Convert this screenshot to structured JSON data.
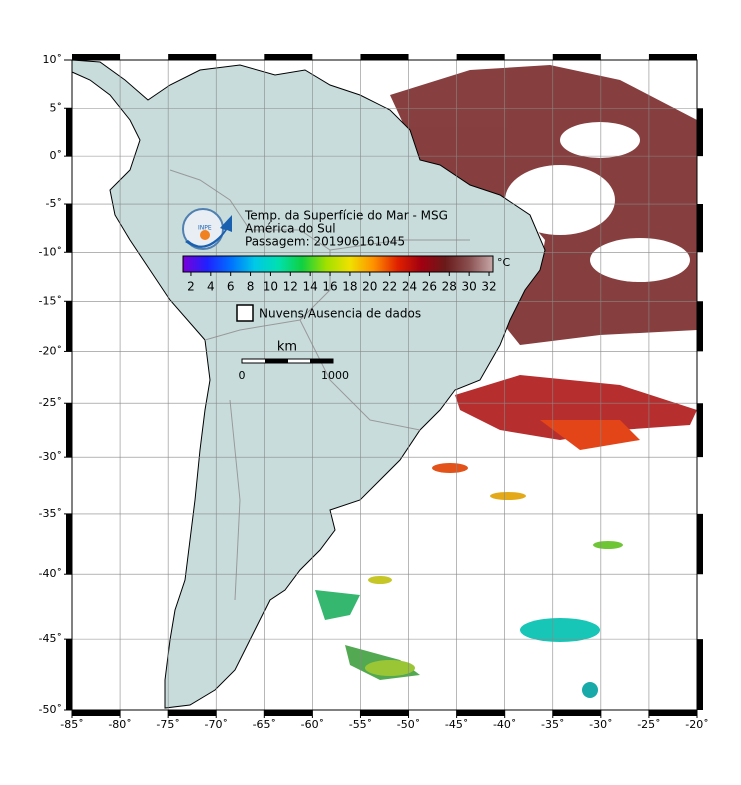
{
  "map": {
    "title": "Temp. da Superfície do Mar - MSG",
    "subtitle": "América do Sul",
    "pass": "Passagem: 201906161045",
    "logo": "INPE",
    "lonlim": [
      -85,
      -20
    ],
    "latlim": [
      -50,
      10
    ],
    "grid": true,
    "xticks": [
      {
        "value": -85,
        "label": "-85˚"
      },
      {
        "value": -80,
        "label": "-80˚"
      },
      {
        "value": -75,
        "label": "-75˚"
      },
      {
        "value": -70,
        "label": "-70˚"
      },
      {
        "value": -65,
        "label": "-65˚"
      },
      {
        "value": -60,
        "label": "-60˚"
      },
      {
        "value": -55,
        "label": "-55˚"
      },
      {
        "value": -50,
        "label": "-50˚"
      },
      {
        "value": -45,
        "label": "-45˚"
      },
      {
        "value": -40,
        "label": "-40˚"
      },
      {
        "value": -35,
        "label": "-35˚"
      },
      {
        "value": -30,
        "label": "-30˚"
      },
      {
        "value": -25,
        "label": "-25˚"
      },
      {
        "value": -20,
        "label": "-20˚"
      }
    ],
    "yticks": [
      {
        "value": 10,
        "label": "10˚"
      },
      {
        "value": 5,
        "label": "5˚"
      },
      {
        "value": 0,
        "label": "0˚"
      },
      {
        "value": -5,
        "label": "-5˚"
      },
      {
        "value": -10,
        "label": "-10˚"
      },
      {
        "value": -15,
        "label": "-15˚"
      },
      {
        "value": -20,
        "label": "-20˚"
      },
      {
        "value": -25,
        "label": "-25˚"
      },
      {
        "value": -30,
        "label": "-30˚"
      },
      {
        "value": -35,
        "label": "-35˚"
      },
      {
        "value": -40,
        "label": "-40˚"
      },
      {
        "value": -45,
        "label": "-45˚"
      },
      {
        "value": -50,
        "label": "-50˚"
      }
    ],
    "colorbar": {
      "unit": "°C",
      "clim": [
        1.2,
        32.4
      ],
      "ticks": [
        2,
        4,
        6,
        8,
        10,
        12,
        14,
        16,
        18,
        20,
        22,
        24,
        26,
        28,
        30,
        32
      ],
      "colors": [
        "#7a00d8",
        "#2020ff",
        "#0070ff",
        "#00c8e8",
        "#00e0b0",
        "#10d040",
        "#a0e000",
        "#f0e000",
        "#ff9000",
        "#e02000",
        "#a00010",
        "#6a1a1a",
        "#8a5050",
        "#c8a8a8"
      ]
    },
    "legend": "Nuvens/Ausencia de dados",
    "scale_bar": {
      "unit": "km",
      "ticks": [
        0,
        1000
      ]
    }
  }
}
